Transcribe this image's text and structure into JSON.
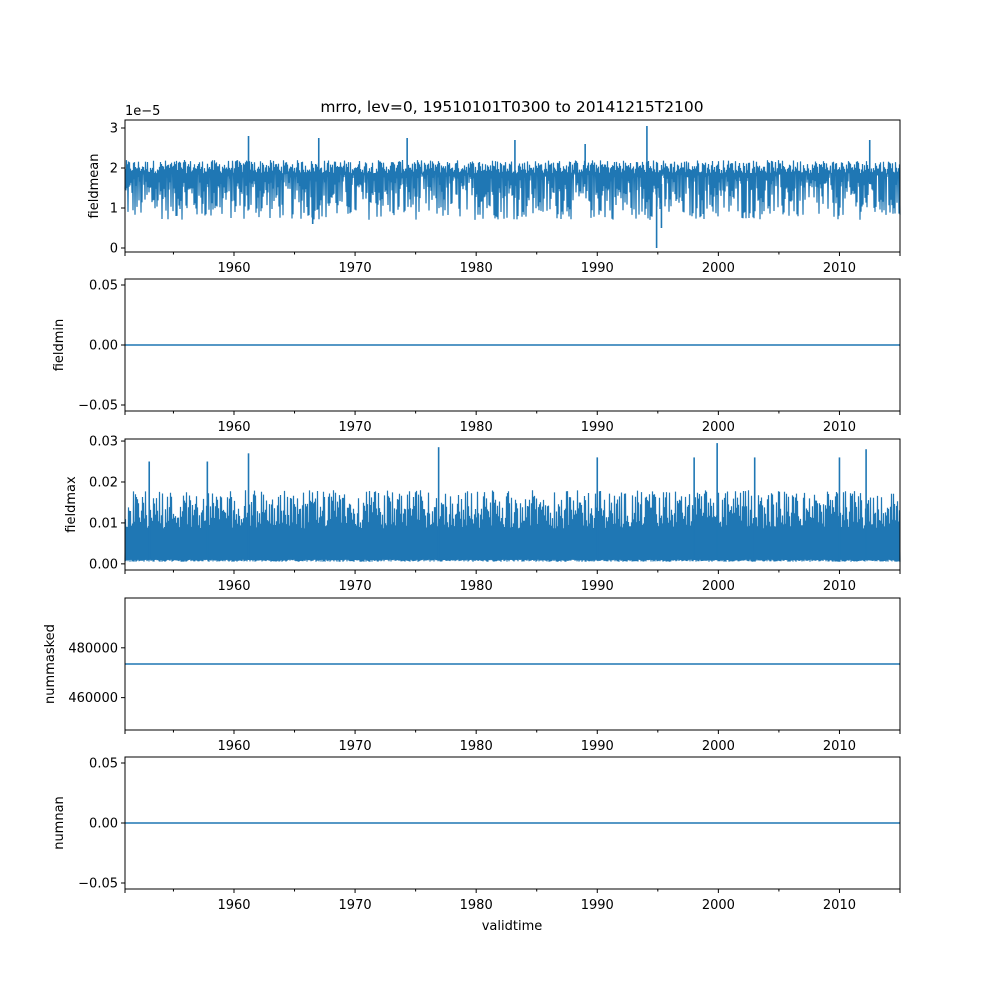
{
  "chart_data": {
    "type": "line",
    "title": "mrro, lev=0, 19510101T0300 to 20141215T2100",
    "xlabel": "validtime",
    "xlim": [
      1951.0,
      2015.0
    ],
    "x_major_ticks": [
      1960,
      1970,
      1980,
      1990,
      2000,
      2010
    ],
    "x_minor_ticks": [
      1955,
      1965,
      1975,
      1985,
      1995,
      2005,
      2015
    ],
    "x_tick_labels": [
      "1960",
      "1970",
      "1980",
      "1990",
      "2000",
      "2010"
    ],
    "color": "#1f77b4",
    "panels": [
      {
        "ylabel": "fieldmean",
        "offset_text": "1e−5",
        "ylim": [
          -1e-06,
          3.2e-05
        ],
        "yticks": [
          0,
          1e-05,
          2e-05,
          3e-05
        ],
        "ytick_labels": [
          "0",
          "1",
          "2",
          "3"
        ],
        "series": {
          "baseline": 1.6e-05,
          "low": 7e-06,
          "high": 2.2e-05,
          "spikes": [
            {
              "x": 1994.1,
              "y": 3.05e-05
            },
            {
              "x": 1961.2,
              "y": 2.8e-05
            },
            {
              "x": 1967.0,
              "y": 2.75e-05
            },
            {
              "x": 1974.3,
              "y": 2.75e-05
            },
            {
              "x": 1983.2,
              "y": 2.7e-05
            },
            {
              "x": 2012.5,
              "y": 2.7e-05
            },
            {
              "x": 1989.0,
              "y": 2.6e-05
            }
          ],
          "dips": [
            {
              "x": 1994.9,
              "y": 0.0
            },
            {
              "x": 1995.3,
              "y": 5e-06
            },
            {
              "x": 1966.5,
              "y": 6e-06
            }
          ]
        }
      },
      {
        "ylabel": "fieldmin",
        "ylim": [
          -0.055,
          0.055
        ],
        "yticks": [
          -0.05,
          0.0,
          0.05
        ],
        "ytick_labels": [
          "−0.05",
          "0.00",
          "0.05"
        ],
        "series": {
          "constant": 0.0
        }
      },
      {
        "ylabel": "fieldmax",
        "ylim": [
          -0.0015,
          0.0305
        ],
        "yticks": [
          0.0,
          0.01,
          0.02,
          0.03
        ],
        "ytick_labels": [
          "0.00",
          "0.01",
          "0.02",
          "0.03"
        ],
        "series": {
          "baseline": 0.001,
          "low": 0.0005,
          "high": 0.018,
          "spikes": [
            {
              "x": 1999.9,
              "y": 0.0295
            },
            {
              "x": 1976.9,
              "y": 0.0285
            },
            {
              "x": 2012.2,
              "y": 0.028
            },
            {
              "x": 1961.2,
              "y": 0.027
            },
            {
              "x": 1998.0,
              "y": 0.026
            },
            {
              "x": 2003.0,
              "y": 0.026
            },
            {
              "x": 2010.0,
              "y": 0.026
            },
            {
              "x": 1990.0,
              "y": 0.026
            },
            {
              "x": 1953.0,
              "y": 0.025
            },
            {
              "x": 1957.8,
              "y": 0.025
            }
          ]
        }
      },
      {
        "ylabel": "nummasked",
        "ylim": [
          447000,
          500000
        ],
        "yticks": [
          460000,
          480000
        ],
        "ytick_labels": [
          "460000",
          "480000"
        ],
        "series": {
          "constant": 473500
        }
      },
      {
        "ylabel": "numnan",
        "ylim": [
          -0.055,
          0.055
        ],
        "yticks": [
          -0.05,
          0.0,
          0.05
        ],
        "ytick_labels": [
          "−0.05",
          "0.00",
          "0.05"
        ],
        "series": {
          "constant": 0.0
        }
      }
    ]
  }
}
